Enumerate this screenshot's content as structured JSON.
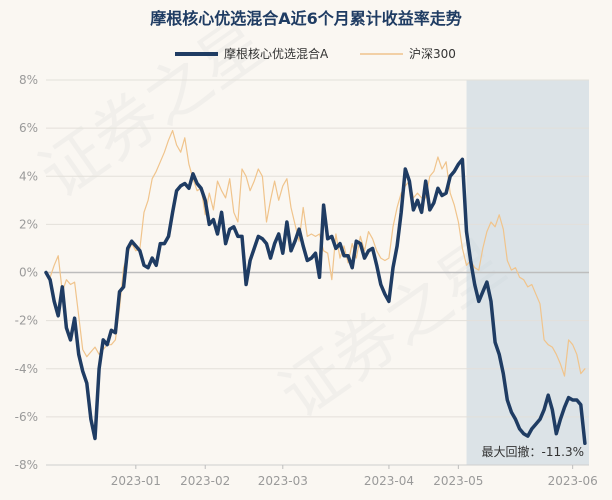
{
  "chart_data": {
    "type": "line",
    "title": "摩根核心优选混合A近6个月累计收益率走势",
    "xlabel": "",
    "ylabel": "",
    "ylim": [
      -8,
      8
    ],
    "yticks": [
      "8%",
      "6%",
      "4%",
      "2%",
      "0%",
      "-2%",
      "-4%",
      "-6%",
      "-8%"
    ],
    "xticks": [
      "2023-01",
      "2023-02",
      "2023-03",
      "2023-04",
      "2023-05",
      "2023-06"
    ],
    "x_range": [
      0,
      133
    ],
    "xtick_positions": [
      22,
      39,
      58,
      84,
      101,
      129
    ],
    "grid": true,
    "legend": "top",
    "series": [
      {
        "name": "摩根核心优选混合A",
        "color": "#1f3c63",
        "values": [
          0.0,
          -0.3,
          -1.2,
          -1.8,
          -0.6,
          -2.3,
          -2.8,
          -1.9,
          -3.4,
          -4.1,
          -4.6,
          -6.1,
          -6.9,
          -4.0,
          -2.8,
          -3.0,
          -2.4,
          -2.5,
          -0.8,
          -0.6,
          1.0,
          1.3,
          1.1,
          0.9,
          0.3,
          0.2,
          0.6,
          0.3,
          1.2,
          1.2,
          1.5,
          2.5,
          3.4,
          3.6,
          3.7,
          3.5,
          4.1,
          3.7,
          3.5,
          3.0,
          2.0,
          2.2,
          1.6,
          2.5,
          1.2,
          1.8,
          1.9,
          1.5,
          1.5,
          -0.5,
          0.5,
          1.0,
          1.5,
          1.4,
          1.2,
          0.6,
          1.2,
          1.6,
          0.8,
          2.1,
          0.9,
          1.3,
          1.8,
          1.1,
          0.5,
          0.6,
          0.8,
          -0.2,
          2.8,
          1.4,
          1.5,
          1.0,
          1.2,
          0.7,
          0.7,
          0.2,
          1.3,
          1.2,
          0.6,
          0.9,
          1.0,
          0.3,
          -0.5,
          -0.9,
          -1.2,
          0.2,
          1.1,
          2.5,
          4.3,
          3.8,
          2.6,
          3.0,
          2.5,
          3.8,
          2.6,
          2.9,
          3.5,
          3.2,
          3.3,
          4.0,
          4.2,
          4.5,
          4.7,
          1.7,
          0.5,
          -0.5,
          -1.2,
          -0.8,
          -0.4,
          -1.2,
          -2.9,
          -3.4,
          -4.2,
          -5.3,
          -5.8,
          -6.1,
          -6.5,
          -6.7,
          -6.8,
          -6.5,
          -6.3,
          -6.1,
          -5.7,
          -5.1,
          -5.7,
          -6.7,
          -6.1,
          -5.6,
          -5.2,
          -5.3,
          -5.3,
          -5.5,
          -7.1
        ]
      },
      {
        "name": "沪深300",
        "color": "#f0c48c",
        "values": [
          0.0,
          -0.2,
          0.3,
          0.7,
          -0.8,
          -0.3,
          -0.5,
          -0.4,
          -1.8,
          -3.2,
          -3.5,
          -3.3,
          -3.1,
          -3.4,
          -3.2,
          -3.0,
          -3.0,
          -2.8,
          -1.5,
          0.2,
          0.8,
          1.2,
          0.9,
          1.0,
          2.5,
          3.0,
          3.9,
          4.2,
          4.6,
          5.0,
          5.5,
          5.9,
          5.3,
          5.0,
          5.6,
          4.5,
          3.9,
          3.4,
          3.5,
          2.4,
          3.3,
          2.6,
          3.8,
          3.4,
          3.1,
          3.9,
          2.5,
          2.1,
          4.3,
          4.0,
          3.4,
          3.8,
          4.3,
          4.0,
          2.1,
          3.0,
          3.8,
          3.0,
          3.6,
          3.9,
          2.7,
          2.0,
          1.3,
          2.7,
          1.5,
          1.6,
          1.5,
          1.6,
          0.9,
          0.8,
          -0.3,
          1.6,
          0.6,
          1.1,
          0.4,
          1.2,
          0.6,
          1.5,
          0.9,
          1.7,
          1.4,
          0.9,
          0.6,
          0.5,
          0.6,
          1.9,
          2.7,
          3.3,
          3.6,
          3.8,
          3.1,
          3.3,
          3.1,
          3.1,
          4.0,
          4.2,
          4.8,
          4.3,
          4.6,
          3.3,
          2.8,
          2.1,
          1.0,
          0.3,
          0.5,
          0.2,
          0.1,
          1.0,
          1.7,
          2.1,
          1.9,
          2.4,
          1.8,
          0.5,
          0.1,
          0.2,
          -0.2,
          -0.3,
          -0.6,
          -0.5,
          -0.9,
          -1.3,
          -2.8,
          -3.0,
          -3.1,
          -3.4,
          -3.8,
          -4.3,
          -2.8,
          -3.0,
          -3.4,
          -4.2,
          -4.0
        ]
      }
    ],
    "drawdown_band": {
      "from": 103,
      "to": 133,
      "color": "#c8d5df"
    },
    "annotation": "最大回撤：-11.3%",
    "watermark": [
      "证券之星",
      "证券之星"
    ]
  }
}
